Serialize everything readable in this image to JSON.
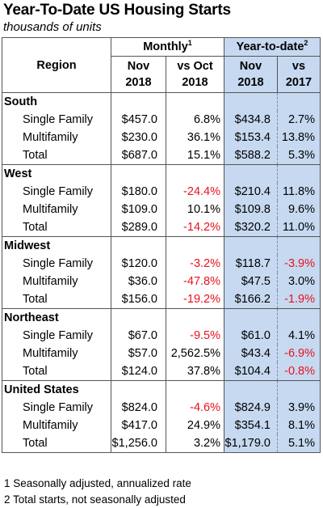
{
  "title": "Year-To-Date US Housing Starts",
  "subtitle": "thousands of units",
  "table": {
    "region_header": "Region",
    "group_monthly": "Monthly",
    "group_monthly_note": "1",
    "group_ytd": "Year-to-date",
    "group_ytd_note": "2",
    "sub_headers": [
      [
        "Nov",
        "2018"
      ],
      [
        "vs Oct",
        "2018"
      ],
      [
        "Nov",
        "2018"
      ],
      [
        "vs",
        "2017"
      ]
    ],
    "groups": [
      {
        "name": "South",
        "rows": [
          {
            "label": "Single Family",
            "m_val": "$457.0",
            "m_chg": "6.8%",
            "m_neg": false,
            "y_val": "$434.8",
            "y_chg": "2.7%",
            "y_neg": false
          },
          {
            "label": "Multifamily",
            "m_val": "$230.0",
            "m_chg": "36.1%",
            "m_neg": false,
            "y_val": "$153.4",
            "y_chg": "13.8%",
            "y_neg": false
          },
          {
            "label": "Total",
            "m_val": "$687.0",
            "m_chg": "15.1%",
            "m_neg": false,
            "y_val": "$588.2",
            "y_chg": "5.3%",
            "y_neg": false
          }
        ]
      },
      {
        "name": "West",
        "rows": [
          {
            "label": "Single Family",
            "m_val": "$180.0",
            "m_chg": "-24.4%",
            "m_neg": true,
            "y_val": "$210.4",
            "y_chg": "11.8%",
            "y_neg": false
          },
          {
            "label": "Multifamily",
            "m_val": "$109.0",
            "m_chg": "10.1%",
            "m_neg": false,
            "y_val": "$109.8",
            "y_chg": "9.6%",
            "y_neg": false
          },
          {
            "label": "Total",
            "m_val": "$289.0",
            "m_chg": "-14.2%",
            "m_neg": true,
            "y_val": "$320.2",
            "y_chg": "11.0%",
            "y_neg": false
          }
        ]
      },
      {
        "name": "Midwest",
        "rows": [
          {
            "label": "Single Family",
            "m_val": "$120.0",
            "m_chg": "-3.2%",
            "m_neg": true,
            "y_val": "$118.7",
            "y_chg": "-3.9%",
            "y_neg": true
          },
          {
            "label": "Multifamily",
            "m_val": "$36.0",
            "m_chg": "-47.8%",
            "m_neg": true,
            "y_val": "$47.5",
            "y_chg": "3.0%",
            "y_neg": false
          },
          {
            "label": "Total",
            "m_val": "$156.0",
            "m_chg": "-19.2%",
            "m_neg": true,
            "y_val": "$166.2",
            "y_chg": "-1.9%",
            "y_neg": true
          }
        ]
      },
      {
        "name": "Northeast",
        "rows": [
          {
            "label": "Single Family",
            "m_val": "$67.0",
            "m_chg": "-9.5%",
            "m_neg": true,
            "y_val": "$61.0",
            "y_chg": "4.1%",
            "y_neg": false
          },
          {
            "label": "Multifamily",
            "m_val": "$57.0",
            "m_chg": "2,562.5%",
            "m_neg": false,
            "y_val": "$43.4",
            "y_chg": "-6.9%",
            "y_neg": true
          },
          {
            "label": "Total",
            "m_val": "$124.0",
            "m_chg": "37.8%",
            "m_neg": false,
            "y_val": "$104.4",
            "y_chg": "-0.8%",
            "y_neg": true
          }
        ]
      },
      {
        "name": "United States",
        "rows": [
          {
            "label": "Single Family",
            "m_val": "$824.0",
            "m_chg": "-4.6%",
            "m_neg": true,
            "y_val": "$824.9",
            "y_chg": "3.9%",
            "y_neg": false
          },
          {
            "label": "Multifamily",
            "m_val": "$417.0",
            "m_chg": "24.9%",
            "m_neg": false,
            "y_val": "$354.1",
            "y_chg": "8.1%",
            "y_neg": false
          },
          {
            "label": "Total",
            "m_val": "$1,256.0",
            "m_chg": "3.2%",
            "m_neg": false,
            "y_val": "$1,179.0",
            "y_chg": "5.1%",
            "y_neg": false
          }
        ]
      }
    ]
  },
  "notes": [
    "1 Seasonally adjusted, annualized rate",
    "2 Total starts, not seasonally adjusted"
  ],
  "colors": {
    "ytd_fill": "#c6d9f0",
    "negative": "#e8121d"
  }
}
